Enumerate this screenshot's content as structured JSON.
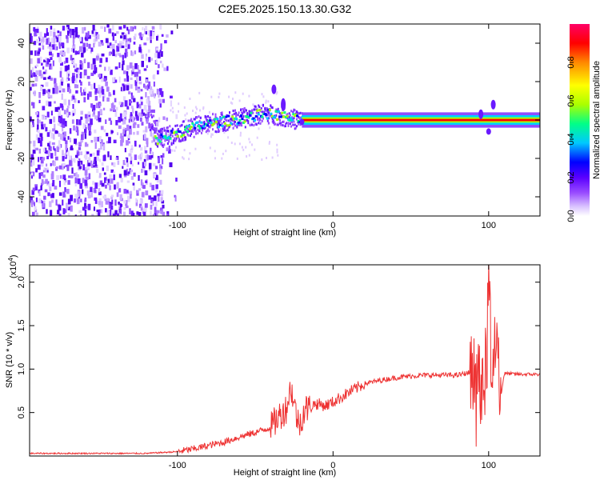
{
  "title": "C2E5.2025.150.13.30.G32",
  "chart_data": [
    {
      "type": "heatmap",
      "name": "spectrogram",
      "xlabel": "Height of straight line (km)",
      "ylabel": "Frequency (Hz)",
      "xlim": [
        -195,
        133
      ],
      "ylim": [
        -50,
        50
      ],
      "x_ticks": [
        -100,
        0,
        100
      ],
      "y_ticks": [
        -40,
        -20,
        0,
        20,
        40
      ],
      "noise_region_x": [
        -195,
        -105
      ],
      "ridge": {
        "x": [
          -115,
          -100,
          -85,
          -70,
          -55,
          -45,
          -35,
          -25,
          -15,
          0,
          50,
          90,
          100,
          110,
          133
        ],
        "y": [
          -10,
          -6,
          -2,
          0,
          2,
          4,
          3,
          1,
          0,
          0,
          0,
          0,
          1,
          0,
          0
        ]
      },
      "colorbar": {
        "label": "Normalized spectral amplitude",
        "range": [
          0.0,
          1.0
        ],
        "ticks": [
          0.0,
          0.2,
          0.4,
          0.6,
          0.8
        ],
        "tick_labels": [
          "0.0",
          "0.2",
          "0.4",
          "0.6",
          "0.8"
        ],
        "colormap": [
          "#ffffff",
          "#d9c2ff",
          "#9a4dff",
          "#5a00ff",
          "#0000ff",
          "#00c8ff",
          "#00ff88",
          "#aaff00",
          "#ffff00",
          "#ff8800",
          "#ff0000",
          "#ff0066"
        ]
      }
    },
    {
      "type": "line",
      "name": "snr",
      "xlabel": "Height of straight line (km)",
      "ylabel": "SNR (10 * v/v)",
      "scale_label": "(x10",
      "scale_exp": "4",
      "scale_close": ")",
      "xlim": [
        -195,
        133
      ],
      "ylim": [
        0,
        2.2
      ],
      "x_ticks": [
        -100,
        0,
        100
      ],
      "y_ticks": [
        0.5,
        1.0,
        1.5,
        2.0
      ],
      "y_tick_labels": [
        "0.5",
        "1.0",
        "1.5",
        "2.0"
      ],
      "line_color": "#ee3333",
      "series": [
        {
          "x": [
            -195,
            -150,
            -120,
            -100,
            -90,
            -80,
            -70,
            -60,
            -50,
            -40,
            -35,
            -30,
            -27,
            -25,
            -22,
            -20,
            -18,
            -15,
            -12,
            -10,
            -5,
            0,
            10,
            20,
            25,
            30,
            40,
            50,
            60,
            70,
            80,
            85,
            88,
            90,
            92,
            95,
            97,
            99,
            100,
            102,
            105,
            108,
            110,
            120,
            133
          ],
          "y": [
            0.03,
            0.03,
            0.03,
            0.05,
            0.08,
            0.12,
            0.16,
            0.22,
            0.27,
            0.33,
            0.45,
            0.55,
            0.8,
            0.6,
            0.35,
            0.45,
            0.55,
            0.55,
            0.6,
            0.6,
            0.58,
            0.62,
            0.73,
            0.83,
            0.85,
            0.87,
            0.9,
            0.92,
            0.93,
            0.93,
            0.93,
            0.95,
            0.96,
            0.97,
            0.9,
            0.8,
            0.6,
            1.2,
            2.2,
            0.9,
            1.3,
            0.7,
            0.95,
            0.94,
            0.94
          ]
        }
      ]
    }
  ]
}
